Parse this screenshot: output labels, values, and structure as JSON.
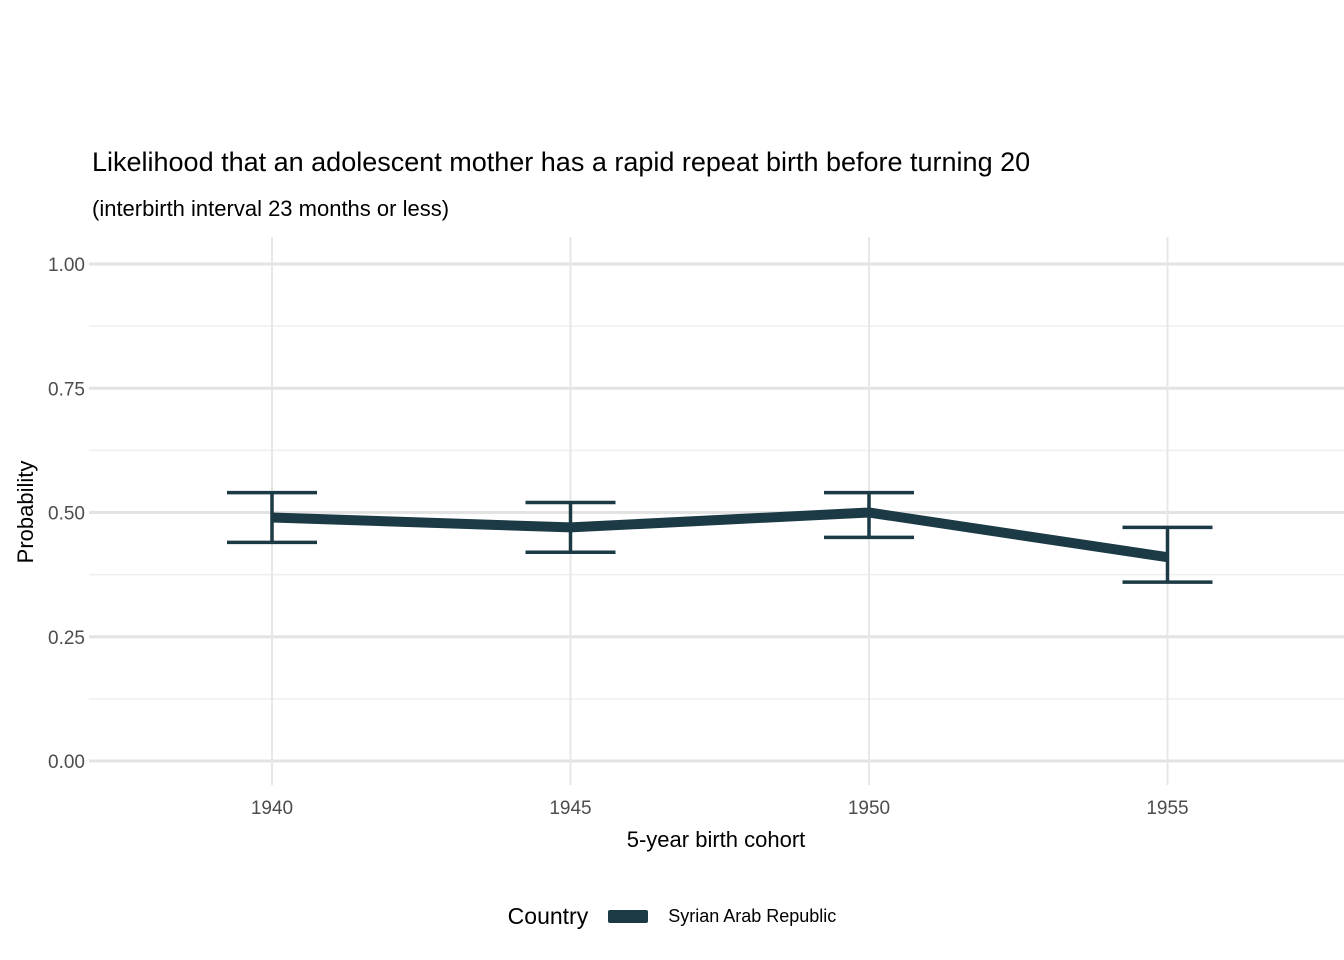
{
  "chart_data": {
    "type": "line",
    "title": "Likelihood that an adolescent mother has a rapid repeat birth before turning 20",
    "subtitle": "(interbirth interval 23 months or less)",
    "xlabel": "5-year birth cohort",
    "ylabel": "Probability",
    "x": [
      1940,
      1945,
      1950,
      1955
    ],
    "x_tick_labels": [
      "1940",
      "1945",
      "1950",
      "1955"
    ],
    "y_ticks": [
      0,
      0.25,
      0.5,
      0.75,
      1
    ],
    "y_tick_labels": [
      "0.00",
      "0.25",
      "0.50",
      "0.75",
      "1.00"
    ],
    "y_minor_ticks": [
      0.125,
      0.375,
      0.625,
      0.875
    ],
    "ylim": [
      0,
      1
    ],
    "grid": {
      "major_color": "#e3e3e3",
      "minor_color": "#efefef",
      "vertical_color": "#e7e7e7",
      "background": "#ffffff",
      "tick_label_color": "#4d4d4d"
    },
    "legend": {
      "title": "Country",
      "position": "bottom"
    },
    "series": [
      {
        "name": "Syrian Arab Republic",
        "color": "#1b3a45",
        "values": [
          0.49,
          0.47,
          0.5,
          0.41
        ],
        "ci_low": [
          0.44,
          0.42,
          0.45,
          0.36
        ],
        "ci_high": [
          0.54,
          0.52,
          0.54,
          0.47
        ]
      }
    ]
  }
}
